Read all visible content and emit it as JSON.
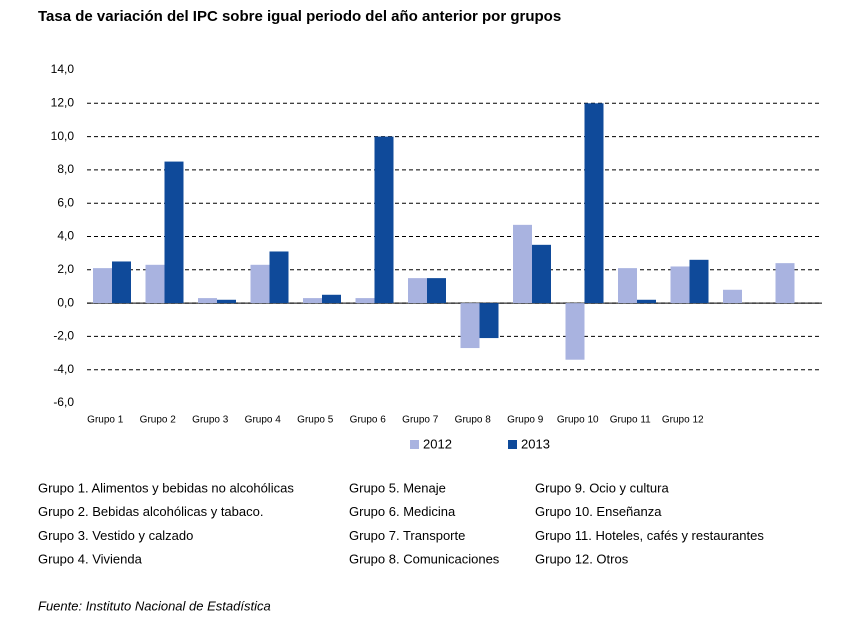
{
  "chart_data": {
    "type": "bar",
    "title": "Tasa de variación del IPC sobre igual periodo del año anterior por grupos",
    "categories": [
      "Grupo 1",
      "Grupo 2",
      "Grupo 3",
      "Grupo 4",
      "Grupo 5",
      "Grupo 6",
      "Grupo 7",
      "Grupo 8",
      "Grupo 9",
      "Grupo 10",
      "Grupo 11",
      "Grupo 12",
      null,
      null
    ],
    "series": [
      {
        "name": "2012",
        "color": "#a9b3e0",
        "values": [
          2.1,
          2.3,
          0.3,
          2.3,
          0.3,
          0.3,
          1.5,
          -2.7,
          4.7,
          -3.4,
          2.1,
          2.2,
          0.8,
          2.4
        ]
      },
      {
        "name": "2013",
        "color": "#0f4a9a",
        "values": [
          2.5,
          8.5,
          0.2,
          3.1,
          0.5,
          10.0,
          1.5,
          -2.1,
          3.5,
          12.0,
          0.2,
          2.6,
          null,
          null
        ]
      }
    ],
    "ylim": [
      -6,
      14
    ],
    "yticks": [
      {
        "value": -6,
        "label": "-6,0"
      },
      {
        "value": -4,
        "label": "-4,0"
      },
      {
        "value": -2,
        "label": "-2,0"
      },
      {
        "value": 0,
        "label": "0,0"
      },
      {
        "value": 2,
        "label": "2,0"
      },
      {
        "value": 4,
        "label": "4,0"
      },
      {
        "value": 6,
        "label": "6,0"
      },
      {
        "value": 8,
        "label": "8,0"
      },
      {
        "value": 10,
        "label": "10,0"
      },
      {
        "value": 12,
        "label": "12,0"
      },
      {
        "value": 14,
        "label": "14,0"
      }
    ],
    "grid": true,
    "legend": "bottom",
    "notes": [
      "Grupo 1. Alimentos y bebidas no alcohólicas",
      "Grupo 2. Bebidas alcohólicas y  tabaco.",
      "Grupo 3. Vestido y calzado",
      "Grupo 4. Vivienda",
      "Grupo 5. Menaje",
      "Grupo 6. Medicina",
      "Grupo 7. Transporte",
      "Grupo 8. Comunicaciones",
      "Grupo 9. Ocio y cultura",
      "Grupo 10. Enseñanza",
      "Grupo 11. Hoteles, cafés y restaurantes",
      "Grupo 12. Otros"
    ],
    "source": "Fuente: Instituto Nacional de Estadística"
  }
}
